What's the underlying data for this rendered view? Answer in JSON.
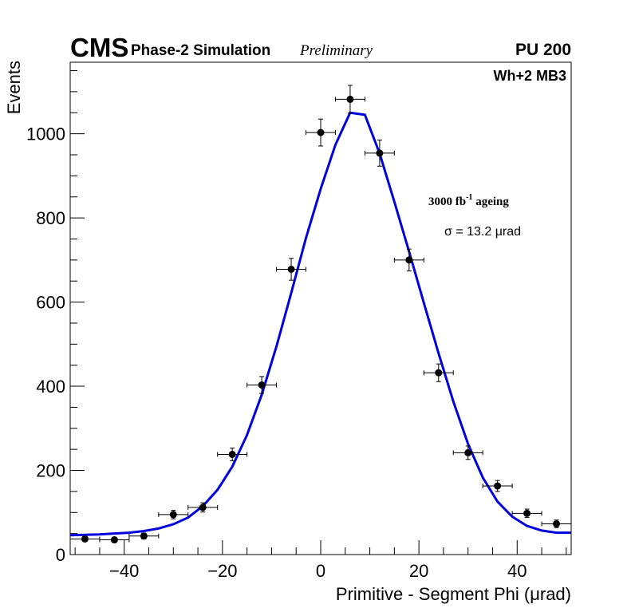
{
  "chart_data": {
    "type": "scatter",
    "title": "",
    "experiment": "CMS",
    "simulation_label": "Phase-2 Simulation",
    "status_label": "Preliminary",
    "pileup_label": "PU 200",
    "chamber_label": "Wh+2 MB3",
    "ageing_label_main": "3000 fb",
    "ageing_label_sup": "-1",
    "ageing_label_tail": " ageing",
    "sigma_label": "σ = 13.2 μrad",
    "xlabel": "Primitive - Segment Phi (μrad)",
    "ylabel": "Events",
    "xlim": [
      -51,
      51
    ],
    "ylim": [
      0,
      1170
    ],
    "x_ticks": [
      -40,
      -20,
      0,
      20,
      40
    ],
    "x_tick_labels": [
      "−40",
      "−20",
      "0",
      "20",
      "40"
    ],
    "y_ticks": [
      0,
      200,
      400,
      600,
      800,
      1000
    ],
    "y_tick_labels": [
      "0",
      "200",
      "400",
      "600",
      "800",
      "1000"
    ],
    "bin_half_width": 3,
    "series": [
      {
        "name": "Data",
        "color": "#000000",
        "x": [
          -48,
          -42,
          -36,
          -30,
          -24,
          -18,
          -12,
          -6,
          0,
          6,
          12,
          18,
          24,
          30,
          36,
          42,
          48
        ],
        "y": [
          37,
          35,
          44,
          95,
          112,
          238,
          403,
          678,
          1003,
          1082,
          954,
          700,
          432,
          242,
          163,
          98,
          73
        ],
        "yerr": [
          6,
          6,
          7,
          10,
          11,
          15,
          20,
          26,
          32,
          33,
          31,
          26,
          21,
          16,
          13,
          10,
          9
        ]
      },
      {
        "name": "Gaussian fit",
        "color": "#0000dd",
        "type": "line",
        "x": [
          -51,
          -48,
          -45,
          -42,
          -39,
          -36,
          -33,
          -30,
          -27,
          -24,
          -21,
          -18,
          -15,
          -12,
          -9,
          -6,
          -3,
          0,
          3,
          6,
          9,
          12,
          15,
          18,
          21,
          24,
          27,
          30,
          33,
          36,
          39,
          42,
          45,
          48,
          51
        ],
        "y": [
          46,
          47,
          48,
          50,
          52,
          56,
          62,
          72,
          88,
          115,
          154,
          209,
          284,
          380,
          495,
          622,
          752,
          869,
          974,
          1050,
          1045,
          953,
          838,
          720,
          598,
          478,
          364,
          263,
          183,
          126,
          90,
          68,
          57,
          52,
          52
        ]
      }
    ]
  }
}
